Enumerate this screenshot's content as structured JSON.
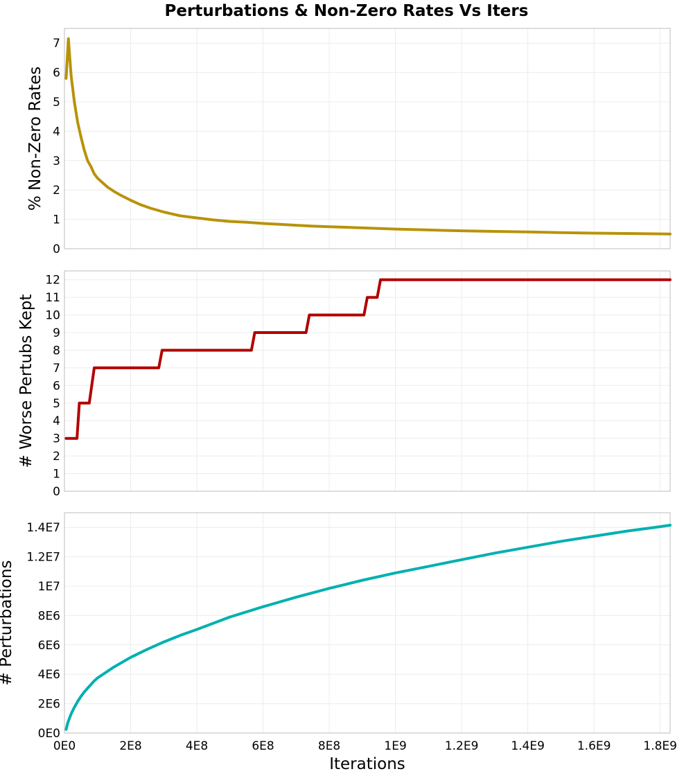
{
  "chart_data": {
    "title": "Perturbations & Non-Zero Rates Vs Iters",
    "xlabel": "Iterations",
    "shared_x": {
      "xlim": [
        0,
        1830000000
      ],
      "ticks": [
        0,
        200000000,
        400000000,
        600000000,
        800000000,
        1000000000,
        1200000000,
        1400000000,
        1600000000,
        1800000000
      ],
      "tick_labels": [
        "0E0",
        "2E8",
        "4E8",
        "6E8",
        "8E8",
        "1E9",
        "1.2E9",
        "1.4E9",
        "1.6E9",
        "1.8E9"
      ]
    },
    "panels": [
      {
        "type": "line",
        "ylabel": "% Non-Zero Rates",
        "color": "#b8930a",
        "ylim": [
          0,
          7.5
        ],
        "yticks": [
          0,
          1,
          2,
          3,
          4,
          5,
          6,
          7
        ],
        "ytick_labels": [
          "0",
          "1",
          "2",
          "3",
          "4",
          "5",
          "6",
          "7"
        ],
        "grid": true,
        "x": [
          5000000,
          12000000,
          20000000,
          30000000,
          40000000,
          50000000,
          60000000,
          70000000,
          80000000,
          90000000,
          100000000,
          115000000,
          130000000,
          150000000,
          170000000,
          200000000,
          230000000,
          260000000,
          300000000,
          350000000,
          400000000,
          450000000,
          500000000,
          550000000,
          600000000,
          650000000,
          700000000,
          750000000,
          800000000,
          850000000,
          900000000,
          950000000,
          1000000000,
          1100000000,
          1200000000,
          1300000000,
          1400000000,
          1500000000,
          1600000000,
          1700000000,
          1830000000
        ],
        "y": [
          5.8,
          7.15,
          5.9,
          5.0,
          4.3,
          3.8,
          3.35,
          3.0,
          2.8,
          2.55,
          2.4,
          2.25,
          2.1,
          1.95,
          1.82,
          1.65,
          1.5,
          1.38,
          1.25,
          1.12,
          1.05,
          0.98,
          0.93,
          0.9,
          0.86,
          0.83,
          0.8,
          0.77,
          0.75,
          0.73,
          0.71,
          0.69,
          0.67,
          0.64,
          0.61,
          0.59,
          0.57,
          0.55,
          0.53,
          0.52,
          0.5
        ]
      },
      {
        "type": "line",
        "ylabel": "# Worse Pertubs Kept",
        "color": "#b20000",
        "ylim": [
          0,
          12.5
        ],
        "yticks": [
          0,
          1,
          2,
          3,
          4,
          5,
          6,
          7,
          8,
          9,
          10,
          11,
          12
        ],
        "ytick_labels": [
          "0",
          "1",
          "2",
          "3",
          "4",
          "5",
          "6",
          "7",
          "8",
          "9",
          "10",
          "11",
          "12"
        ],
        "grid": true,
        "x": [
          5000000,
          38000000,
          45000000,
          75000000,
          90000000,
          285000000,
          295000000,
          565000000,
          575000000,
          730000000,
          740000000,
          905000000,
          915000000,
          945000000,
          955000000,
          1830000000
        ],
        "y": [
          3,
          3,
          5,
          5,
          7,
          7,
          8,
          8,
          9,
          9,
          10,
          10,
          11,
          11,
          12,
          12
        ]
      },
      {
        "type": "line",
        "ylabel": "# Perturbations",
        "color": "#00b0b0",
        "ylim": [
          0,
          15000000
        ],
        "yticks": [
          0,
          2000000,
          4000000,
          6000000,
          8000000,
          10000000,
          12000000,
          14000000
        ],
        "ytick_labels": [
          "0E0",
          "2E6",
          "4E6",
          "6E6",
          "8E6",
          "1E7",
          "1.2E7",
          "1.4E7"
        ],
        "grid": true,
        "x": [
          5000000,
          10000000,
          20000000,
          30000000,
          40000000,
          50000000,
          60000000,
          70000000,
          80000000,
          90000000,
          100000000,
          120000000,
          150000000,
          200000000,
          250000000,
          300000000,
          350000000,
          400000000,
          500000000,
          600000000,
          700000000,
          800000000,
          900000000,
          1000000000,
          1100000000,
          1200000000,
          1300000000,
          1400000000,
          1500000000,
          1600000000,
          1700000000,
          1800000000,
          1830000000
        ],
        "y": [
          250000,
          700000,
          1300000,
          1750000,
          2150000,
          2500000,
          2800000,
          3050000,
          3300000,
          3550000,
          3750000,
          4050000,
          4500000,
          5150000,
          5700000,
          6200000,
          6650000,
          7050000,
          7900000,
          8600000,
          9250000,
          9850000,
          10400000,
          10900000,
          11350000,
          11800000,
          12250000,
          12650000,
          13050000,
          13400000,
          13750000,
          14050000,
          14150000
        ]
      }
    ]
  }
}
